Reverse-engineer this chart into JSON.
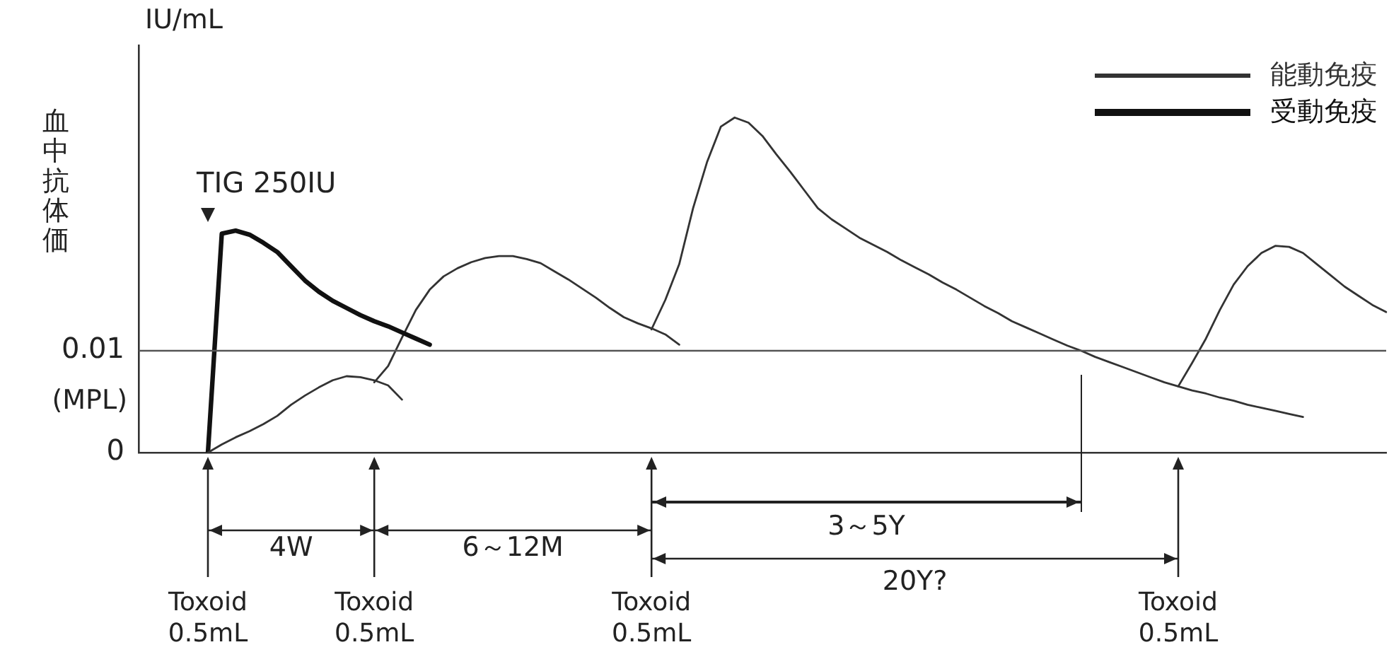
{
  "chart_data": {
    "type": "line",
    "ylabel": "血中抗体価",
    "annotations": [
      "IU/mL",
      "(MPL)",
      "TIG 250IU",
      "Toxoid\n0.5mL",
      "Toxoid\n0.5mL",
      "Toxoid\n0.5mL",
      "Toxoid\n0.5mL",
      "4W",
      "6～12M",
      "3～5Y",
      "20Y?"
    ],
    "categories": [
      null,
      null,
      null,
      null,
      null,
      null,
      null,
      null,
      null,
      null,
      null,
      null,
      null,
      null,
      null,
      null,
      null,
      null,
      null,
      null,
      null,
      null,
      null,
      null,
      null,
      null,
      null,
      null,
      null,
      null,
      null,
      null,
      null,
      null,
      null,
      null,
      null,
      null,
      null,
      null,
      null,
      null,
      null,
      null,
      null,
      null,
      null,
      null,
      null,
      null,
      null,
      null,
      null,
      null,
      null,
      null,
      null,
      null,
      null,
      null,
      null,
      null,
      null,
      null,
      null,
      null,
      null,
      null,
      null,
      null,
      null,
      null,
      null,
      null,
      null,
      null,
      null,
      null,
      null,
      null,
      null,
      null,
      null,
      null,
      null,
      null,
      null,
      null,
      null,
      null,
      null
    ],
    "series": [
      {
        "name": "能動免疫",
        "color": "#333333",
        "values": [
          null,
          null,
          null,
          null,
          null,
          0,
          0.0008,
          0.0015,
          0.0021,
          0.0028,
          0.0036,
          0.0047,
          0.0056,
          0.0064,
          0.0071,
          0.0075,
          0.0074,
          0.0071,
          0.0066,
          0.0052,
          null,
          null,
          null,
          null,
          null,
          null,
          null,
          null,
          null,
          null,
          null,
          null,
          null,
          null,
          null,
          null,
          null,
          null,
          null,
          null,
          null,
          null,
          null,
          null,
          null,
          null,
          null,
          null,
          null,
          null,
          null,
          null,
          null,
          null,
          null,
          null,
          null,
          null,
          null,
          null,
          null,
          null,
          null,
          null,
          null,
          null,
          null,
          null,
          null,
          null,
          null,
          null,
          null,
          null,
          null,
          null,
          null,
          null,
          null,
          null,
          null,
          null,
          null,
          null,
          null,
          null,
          null,
          null,
          null,
          null,
          null
        ]
      },
      {
        "name": "受動免疫",
        "color": "#111111",
        "values": [
          null,
          null,
          null,
          null,
          null,
          0,
          0.0215,
          0.0218,
          0.0214,
          0.0206,
          0.0197,
          0.0183,
          0.0169,
          0.0158,
          0.0149,
          0.0142,
          0.0135,
          0.0129,
          0.0124,
          0.0118,
          0.0112,
          0.0106,
          null,
          null,
          null,
          null,
          null,
          null,
          null,
          null,
          null,
          null,
          null,
          null,
          null,
          null,
          null,
          null,
          null,
          null,
          null,
          null,
          null,
          null,
          null,
          null,
          null,
          null,
          null,
          null,
          null,
          null,
          null,
          null,
          null,
          null,
          null,
          null,
          null,
          null,
          null,
          null,
          null,
          null,
          null,
          null,
          null,
          null,
          null,
          null,
          null,
          null,
          null,
          null,
          null,
          null,
          null,
          null,
          null,
          null,
          null,
          null,
          null,
          null,
          null,
          null,
          null,
          null,
          null,
          null,
          null
        ]
      },
      {
        "color": "#333333",
        "values": [
          null,
          null,
          null,
          null,
          null,
          null,
          null,
          null,
          null,
          null,
          null,
          null,
          null,
          null,
          null,
          null,
          null,
          0.0069,
          0.0085,
          0.0113,
          0.014,
          0.016,
          0.0173,
          0.0181,
          0.0187,
          0.0191,
          0.0193,
          0.0193,
          0.019,
          0.0186,
          0.0178,
          0.017,
          0.0161,
          0.0152,
          0.0142,
          0.0133,
          0.0127,
          0.0122,
          0.0116,
          0.0106,
          null,
          null,
          null,
          null,
          null,
          null,
          null,
          null,
          null,
          null,
          null,
          null,
          null,
          null,
          null,
          null,
          null,
          null,
          null,
          null,
          null,
          null,
          null,
          null,
          null,
          null,
          null,
          null,
          null,
          null,
          null,
          null,
          null,
          null,
          null,
          null,
          null,
          null,
          null,
          null,
          null,
          null,
          null,
          null,
          null,
          null,
          null,
          null,
          null,
          null,
          null
        ]
      },
      {
        "color": "#333333",
        "values": [
          null,
          null,
          null,
          null,
          null,
          null,
          null,
          null,
          null,
          null,
          null,
          null,
          null,
          null,
          null,
          null,
          null,
          null,
          null,
          null,
          null,
          null,
          null,
          null,
          null,
          null,
          null,
          null,
          null,
          null,
          null,
          null,
          null,
          null,
          null,
          null,
          null,
          0.0121,
          0.015,
          0.0185,
          0.024,
          0.0285,
          0.032,
          0.0329,
          0.0324,
          0.0311,
          0.0293,
          0.0276,
          0.0258,
          0.024,
          0.0229,
          0.022,
          0.0211,
          0.0204,
          0.0197,
          0.0189,
          0.0182,
          0.0175,
          0.0167,
          0.016,
          0.0152,
          0.0144,
          0.0137,
          0.0129,
          0.0123,
          0.0117,
          0.0111,
          0.0105,
          0.01,
          0.0094,
          0.0089,
          0.0084,
          0.0079,
          0.0074,
          0.0069,
          0.0065,
          0.0061,
          0.0058,
          0.0054,
          0.0051,
          0.0047,
          0.0044,
          0.0041,
          0.0038,
          0.0035,
          null,
          null,
          null,
          null,
          null,
          null
        ]
      },
      {
        "color": "#333333",
        "values": [
          null,
          null,
          null,
          null,
          null,
          null,
          null,
          null,
          null,
          null,
          null,
          null,
          null,
          null,
          null,
          null,
          null,
          null,
          null,
          null,
          null,
          null,
          null,
          null,
          null,
          null,
          null,
          null,
          null,
          null,
          null,
          null,
          null,
          null,
          null,
          null,
          null,
          null,
          null,
          null,
          null,
          null,
          null,
          null,
          null,
          null,
          null,
          null,
          null,
          null,
          null,
          null,
          null,
          null,
          null,
          null,
          null,
          null,
          null,
          null,
          null,
          null,
          null,
          null,
          null,
          null,
          null,
          null,
          null,
          null,
          null,
          null,
          null,
          null,
          null,
          0.0065,
          0.0088,
          0.0112,
          0.014,
          0.0165,
          0.0183,
          0.0196,
          0.0203,
          0.0202,
          0.0196,
          0.0185,
          0.0174,
          0.0163,
          0.0154,
          0.0145,
          0.0138
        ]
      }
    ],
    "ylim": [
      0,
      0.04
    ],
    "yticks": [
      0,
      0.01
    ],
    "ref_lines": [
      {
        "axis": "y",
        "value": 0.01,
        "color": "#555555"
      }
    ],
    "tick_labels": "y",
    "grid": false,
    "legend": "top right",
    "marker": "none",
    "line_style": "solid"
  }
}
